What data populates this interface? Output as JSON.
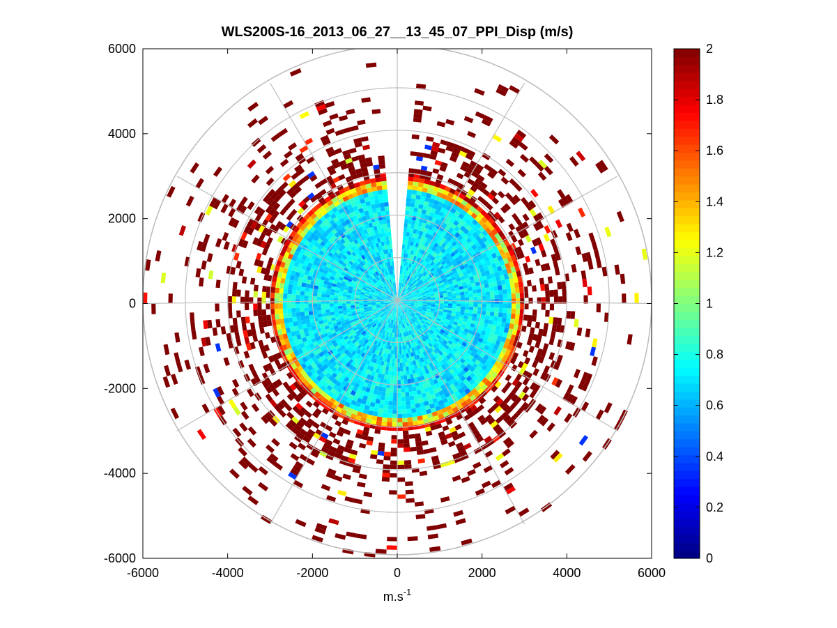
{
  "chart_data": {
    "type": "polar-ppi",
    "title": "WLS200S-16_2013_06_27__13_45_07_PPI_Disp (m/s)",
    "xlabel": "m.s",
    "xlabel_superscript": "-1",
    "ylabel": "",
    "xlim": [
      -6000,
      6000
    ],
    "ylim": [
      -6000,
      6000
    ],
    "x_ticks": [
      -6000,
      -4000,
      -2000,
      0,
      2000,
      4000,
      6000
    ],
    "y_ticks": [
      6000,
      4000,
      2000,
      0,
      -2000,
      -4000,
      -6000
    ],
    "x_tick_labels": [
      "-6000",
      "-4000",
      "-2000",
      "0",
      "2000",
      "4000",
      "6000"
    ],
    "y_tick_labels": [
      "6000",
      "4000",
      "2000",
      "0",
      "-2000",
      "-4000",
      "-6000"
    ],
    "range_rings": [
      1000,
      2000,
      3000,
      4000,
      5000,
      6000
    ],
    "spoke_angles_deg": [
      0,
      30,
      60,
      90,
      120,
      150,
      180,
      210,
      240,
      270,
      300,
      330
    ],
    "grid": true,
    "missing_sector_deg": [
      -4,
      4
    ],
    "colorbar": {
      "min": 0,
      "max": 2,
      "ticks": [
        2,
        1.8,
        1.6,
        1.4,
        1.2,
        1,
        0.8,
        0.6,
        0.4,
        0.2,
        0
      ],
      "tick_labels": [
        "2",
        "1.8",
        "1.6",
        "1.4",
        "1.2",
        "1",
        "0.8",
        "0.6",
        "0.4",
        "0.2",
        "0"
      ],
      "colormap": "jet"
    },
    "field": {
      "inner_radius_max": 2950,
      "inner_typical_value": 0.72,
      "edge_band": [
        2700,
        3050
      ],
      "outer_sparse_value": 2.0,
      "outer_radius_max": 6000
    }
  }
}
